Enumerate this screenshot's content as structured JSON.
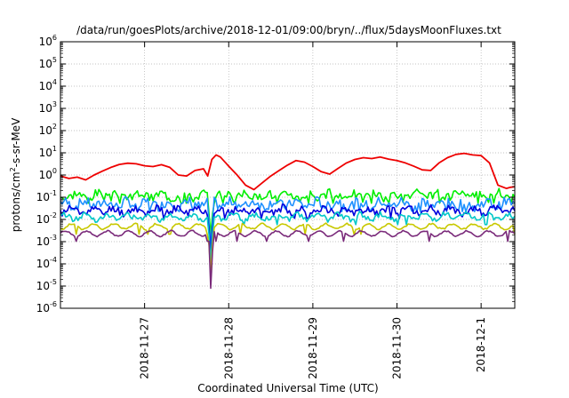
{
  "chart_data": {
    "type": "line",
    "title": "/data/run/goesPlots/archive/2018-12-01/09:00/bryn/../flux/5daysMoonFluxes.txt",
    "xlabel": "Coordinated Universal Time (UTC)",
    "ylabel_parts": [
      "protons/cm",
      "2",
      "-s-sr-MeV"
    ],
    "y_scale": "log",
    "ylim": [
      1e-06,
      1000000.0
    ],
    "grid": true,
    "x_ticks": [
      {
        "label": "2018-11-27",
        "day": 1.0
      },
      {
        "label": "2018-11-28",
        "day": 2.0
      },
      {
        "label": "2018-11-29",
        "day": 3.0
      },
      {
        "label": "2018-11-30",
        "day": 4.0
      },
      {
        "label": "2018-12-1",
        "day": 5.0
      }
    ],
    "xlim_days": [
      0.0,
      5.4
    ],
    "y_ticks": [
      {
        "base": "10",
        "exp": "-6",
        "value": 1e-06
      },
      {
        "base": "10",
        "exp": "-5",
        "value": 1e-05
      },
      {
        "base": "10",
        "exp": "-4",
        "value": 0.0001
      },
      {
        "base": "10",
        "exp": "-3",
        "value": 0.001
      },
      {
        "base": "10",
        "exp": "-2",
        "value": 0.01
      },
      {
        "base": "10",
        "exp": "-1",
        "value": 0.1
      },
      {
        "base": "10",
        "exp": "0",
        "value": 1
      },
      {
        "base": "10",
        "exp": "1",
        "value": 10
      },
      {
        "base": "10",
        "exp": "2",
        "value": 100
      },
      {
        "base": "10",
        "exp": "3",
        "value": 1000
      },
      {
        "base": "10",
        "exp": "4",
        "value": 10000
      },
      {
        "base": "10",
        "exp": "5",
        "value": 100000
      },
      {
        "base": "10",
        "exp": "6",
        "value": 1000000
      }
    ],
    "series": [
      {
        "color": "#ee0000",
        "x": [
          0,
          0.1,
          0.2,
          0.3,
          0.4,
          0.5,
          0.6,
          0.7,
          0.8,
          0.9,
          1.0,
          1.1,
          1.2,
          1.3,
          1.4,
          1.5,
          1.6,
          1.7,
          1.75,
          1.8,
          1.85,
          1.9,
          2.0,
          2.1,
          2.2,
          2.3,
          2.4,
          2.5,
          2.6,
          2.7,
          2.8,
          2.9,
          3.0,
          3.1,
          3.2,
          3.3,
          3.4,
          3.5,
          3.6,
          3.7,
          3.8,
          3.9,
          4.0,
          4.1,
          4.2,
          4.3,
          4.4,
          4.5,
          4.6,
          4.7,
          4.8,
          4.9,
          5.0,
          5.1,
          5.2,
          5.3,
          5.35,
          5.4
        ],
        "y": [
          0.9,
          0.7,
          0.8,
          0.6,
          1.0,
          1.5,
          2.2,
          3.0,
          3.4,
          3.2,
          2.6,
          2.4,
          2.9,
          2.2,
          1.0,
          0.9,
          1.6,
          1.9,
          0.9,
          5.0,
          8.0,
          6.5,
          2.5,
          1.0,
          0.35,
          0.22,
          0.45,
          0.9,
          1.6,
          2.8,
          4.5,
          3.8,
          2.4,
          1.4,
          1.1,
          2.0,
          3.5,
          5.0,
          6.0,
          5.5,
          6.5,
          5.2,
          4.5,
          3.5,
          2.5,
          1.7,
          1.6,
          3.5,
          6.0,
          8.5,
          9.5,
          8.0,
          7.5,
          3.5,
          0.35,
          0.25,
          0.28,
          0.3
        ]
      },
      {
        "color": "#00ee00",
        "base": 0.12,
        "amp": 0.4,
        "dip": 0.002,
        "seed": 3
      },
      {
        "color": "#1e90ff",
        "base": 0.05,
        "amp": 0.45,
        "dip": 0.0008,
        "seed": 7
      },
      {
        "color": "#0000dd",
        "base": 0.025,
        "amp": 0.35,
        "dip": 0.0003,
        "seed": 11
      },
      {
        "color": "#00c8c8",
        "base": 0.013,
        "amp": 0.25,
        "dip": 0.00012,
        "seed": 13
      },
      {
        "color": "#c8c800",
        "base": 0.0048,
        "amp": 0.08,
        "dip": 4e-05,
        "seed": 17
      },
      {
        "color": "#7a2a7a",
        "base": 0.0023,
        "amp": 0.06,
        "dip": 8e-06,
        "seed": 19
      }
    ]
  }
}
